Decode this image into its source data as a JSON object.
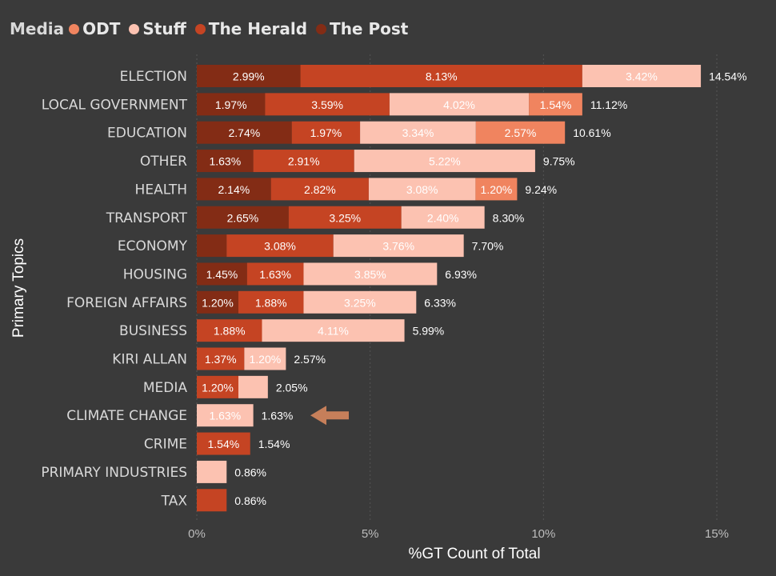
{
  "legend": {
    "title": "Media",
    "items": [
      {
        "label": "ODT",
        "color": "#f0845f"
      },
      {
        "label": "Stuff",
        "color": "#fcc2b1"
      },
      {
        "label": "The Herald",
        "color": "#c54423"
      },
      {
        "label": "The Post",
        "color": "#832c15"
      }
    ]
  },
  "chart_data": {
    "type": "bar",
    "orientation": "horizontal",
    "stacked": true,
    "xlabel": "%GT Count of Total",
    "ylabel": "Primary Topics",
    "xlim": [
      0,
      15
    ],
    "xticks": [
      "0%",
      "5%",
      "10%",
      "15%"
    ],
    "grid": true,
    "legend_position": "top-left",
    "categories": [
      "ELECTION",
      "LOCAL GOVERNMENT",
      "EDUCATION",
      "OTHER",
      "HEALTH",
      "TRANSPORT",
      "ECONOMY",
      "HOUSING",
      "FOREIGN AFFAIRS",
      "BUSINESS",
      "KIRI ALLAN",
      "MEDIA",
      "CLIMATE CHANGE",
      "CRIME",
      "PRIMARY INDUSTRIES",
      "TAX"
    ],
    "segment_order": [
      "The Post",
      "The Herald",
      "Stuff",
      "ODT"
    ],
    "series": [
      {
        "name": "The Post",
        "color": "#832c15",
        "values": [
          2.99,
          1.97,
          2.74,
          1.63,
          2.14,
          2.65,
          0.86,
          1.45,
          1.2,
          0,
          0,
          0,
          0,
          0,
          0,
          0
        ],
        "labels": [
          "2.99%",
          "1.97%",
          "2.74%",
          "1.63%",
          "2.14%",
          "2.65%",
          "",
          "1.45%",
          "1.20%",
          "",
          "",
          "",
          "",
          "",
          "",
          ""
        ]
      },
      {
        "name": "The Herald",
        "color": "#c54423",
        "values": [
          8.13,
          3.59,
          1.97,
          2.91,
          2.82,
          3.25,
          3.08,
          1.63,
          1.88,
          1.88,
          1.37,
          1.2,
          0,
          1.54,
          0,
          0.86
        ],
        "labels": [
          "8.13%",
          "3.59%",
          "1.97%",
          "2.91%",
          "2.82%",
          "3.25%",
          "3.08%",
          "1.63%",
          "1.88%",
          "1.88%",
          "1.37%",
          "1.20%",
          "",
          "1.54%",
          "",
          ""
        ]
      },
      {
        "name": "Stuff",
        "color": "#fcc2b1",
        "values": [
          3.42,
          4.02,
          3.34,
          5.22,
          3.08,
          2.4,
          3.76,
          3.85,
          3.25,
          4.11,
          1.2,
          0.85,
          1.63,
          0,
          0.86,
          0
        ],
        "labels": [
          "3.42%",
          "4.02%",
          "3.34%",
          "5.22%",
          "3.08%",
          "2.40%",
          "3.76%",
          "3.85%",
          "3.25%",
          "4.11%",
          "1.20%",
          "",
          "1.63%",
          "",
          "",
          ""
        ]
      },
      {
        "name": "ODT",
        "color": "#f0845f",
        "values": [
          0,
          1.54,
          2.57,
          0,
          1.2,
          0,
          0,
          0,
          0,
          0,
          0,
          0,
          0,
          0,
          0,
          0
        ],
        "labels": [
          "",
          "1.54%",
          "2.57%",
          "",
          "1.20%",
          "",
          "",
          "",
          "",
          "",
          "",
          "",
          "",
          "",
          "",
          ""
        ]
      }
    ],
    "totals": [
      14.54,
      11.12,
      10.61,
      9.75,
      9.24,
      8.3,
      7.7,
      6.93,
      6.33,
      5.99,
      2.57,
      2.05,
      1.63,
      1.54,
      0.86,
      0.86
    ],
    "total_labels": [
      "14.54%",
      "11.12%",
      "10.61%",
      "9.75%",
      "9.24%",
      "8.30%",
      "7.70%",
      "6.93%",
      "6.33%",
      "5.99%",
      "2.57%",
      "2.05%",
      "1.63%",
      "1.54%",
      "0.86%",
      "0.86%"
    ],
    "annotations": [
      {
        "type": "arrow",
        "target": "CLIMATE CHANGE",
        "color": "#c67f5a"
      }
    ]
  }
}
